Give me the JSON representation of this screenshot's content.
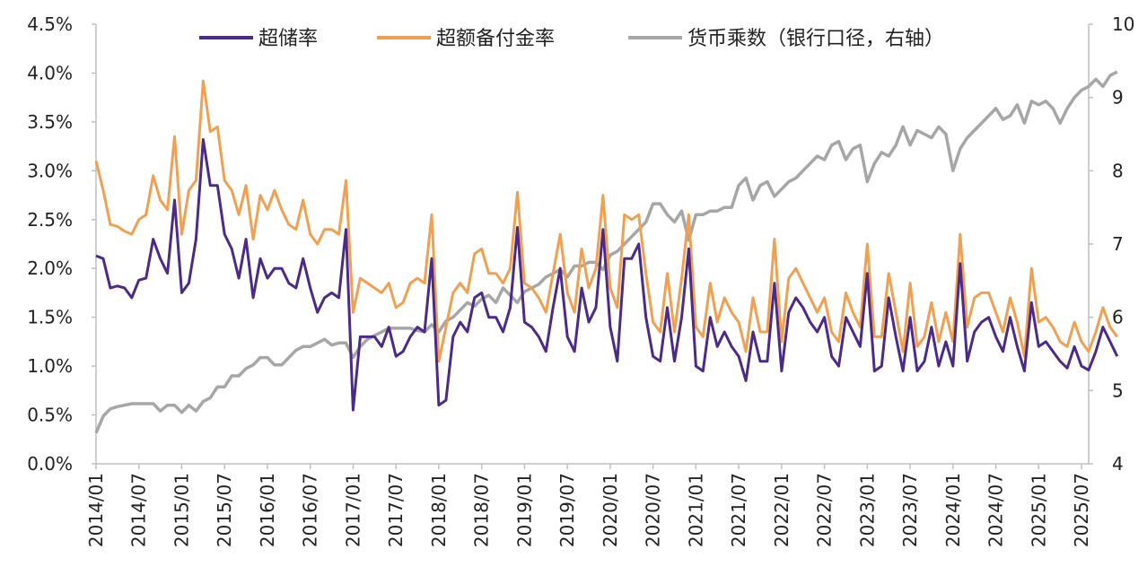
{
  "chart_data": {
    "type": "line",
    "title": "",
    "xlabel": "",
    "ylabel": "",
    "y_left": {
      "min": 0,
      "max": 4.5,
      "ticks": [
        "0.0%",
        "0.5%",
        "1.0%",
        "1.5%",
        "2.0%",
        "2.5%",
        "3.0%",
        "3.5%",
        "4.0%",
        "4.5%"
      ]
    },
    "y_right": {
      "min": 4,
      "max": 10,
      "ticks": [
        "4",
        "5",
        "6",
        "7",
        "8",
        "9",
        "10"
      ]
    },
    "x_ticks": [
      "2014/01",
      "2014/07",
      "2015/01",
      "2015/07",
      "2016/01",
      "2016/07",
      "2017/01",
      "2017/07",
      "2018/01",
      "2018/07",
      "2019/01",
      "2019/07",
      "2020/01",
      "2020/07",
      "2021/01",
      "2021/07",
      "2022/01",
      "2022/07",
      "2023/01",
      "2023/07",
      "2024/01",
      "2024/07",
      "2025/01",
      "2025/07"
    ],
    "x_start": "2014/01",
    "x_end": "2025/08",
    "grid": false,
    "legend_position": "top",
    "series": [
      {
        "name": "超储率",
        "axis": "left",
        "color": "#4b2a8a",
        "values": [
          2.13,
          2.1,
          1.8,
          1.82,
          1.8,
          1.7,
          1.88,
          1.9,
          2.3,
          2.1,
          1.95,
          2.7,
          1.75,
          1.85,
          2.3,
          3.32,
          2.85,
          2.85,
          2.35,
          2.2,
          1.9,
          2.3,
          1.7,
          2.1,
          1.9,
          2.0,
          2.0,
          1.85,
          1.8,
          2.1,
          1.8,
          1.55,
          1.7,
          1.75,
          1.7,
          2.4,
          0.55,
          1.3,
          1.3,
          1.3,
          1.2,
          1.4,
          1.1,
          1.15,
          1.3,
          1.4,
          1.35,
          2.1,
          0.6,
          0.65,
          1.3,
          1.45,
          1.35,
          1.7,
          1.75,
          1.5,
          1.5,
          1.35,
          1.6,
          2.42,
          1.45,
          1.4,
          1.3,
          1.15,
          1.6,
          2.0,
          1.3,
          1.15,
          1.8,
          1.45,
          1.6,
          2.4,
          1.4,
          1.05,
          2.1,
          2.1,
          2.25,
          1.5,
          1.1,
          1.05,
          1.6,
          1.05,
          1.5,
          2.2,
          1.0,
          0.95,
          1.5,
          1.2,
          1.35,
          1.2,
          1.1,
          0.85,
          1.35,
          1.05,
          1.05,
          1.85,
          0.95,
          1.55,
          1.7,
          1.6,
          1.45,
          1.35,
          1.5,
          1.1,
          1.0,
          1.5,
          1.35,
          1.2,
          1.95,
          0.95,
          1.0,
          1.7,
          1.3,
          0.95,
          1.5,
          0.95,
          1.05,
          1.4,
          1.0,
          1.25,
          1.0,
          2.05,
          1.05,
          1.35,
          1.45,
          1.5,
          1.3,
          1.15,
          1.5,
          1.2,
          0.95,
          1.65,
          1.2,
          1.25,
          1.15,
          1.05,
          0.98,
          1.2,
          1.0,
          0.96,
          1.15,
          1.4,
          1.25,
          1.1
        ]
      },
      {
        "name": "超额备付金率",
        "axis": "left",
        "color": "#f0a050",
        "values": [
          3.1,
          2.8,
          2.45,
          2.43,
          2.38,
          2.35,
          2.5,
          2.55,
          2.95,
          2.7,
          2.6,
          3.35,
          2.35,
          2.8,
          2.9,
          3.92,
          3.4,
          3.45,
          2.9,
          2.8,
          2.55,
          2.85,
          2.3,
          2.75,
          2.6,
          2.8,
          2.6,
          2.45,
          2.4,
          2.7,
          2.35,
          2.25,
          2.4,
          2.4,
          2.35,
          2.9,
          1.55,
          1.9,
          1.85,
          1.8,
          1.75,
          1.85,
          1.6,
          1.65,
          1.85,
          1.9,
          1.85,
          2.55,
          1.05,
          1.4,
          1.75,
          1.85,
          1.75,
          2.15,
          2.2,
          1.95,
          1.95,
          1.85,
          2.0,
          2.78,
          1.85,
          1.8,
          1.7,
          1.55,
          1.95,
          2.35,
          1.75,
          1.55,
          2.2,
          1.8,
          2.0,
          2.75,
          1.8,
          1.6,
          2.55,
          2.5,
          2.55,
          1.95,
          1.45,
          1.35,
          1.95,
          1.35,
          1.9,
          2.55,
          1.4,
          1.3,
          1.85,
          1.45,
          1.7,
          1.55,
          1.45,
          1.15,
          1.7,
          1.35,
          1.35,
          2.3,
          1.25,
          1.9,
          2.0,
          1.85,
          1.7,
          1.55,
          1.7,
          1.35,
          1.25,
          1.75,
          1.55,
          1.4,
          2.25,
          1.3,
          1.3,
          1.95,
          1.55,
          1.15,
          1.85,
          1.2,
          1.3,
          1.65,
          1.25,
          1.55,
          1.25,
          2.35,
          1.4,
          1.7,
          1.75,
          1.75,
          1.55,
          1.35,
          1.7,
          1.45,
          1.1,
          2.0,
          1.45,
          1.5,
          1.4,
          1.25,
          1.2,
          1.45,
          1.25,
          1.15,
          1.35,
          1.6,
          1.4,
          1.3
        ]
      },
      {
        "name": "货币乘数（银行口径，右轴）",
        "axis": "right",
        "color": "#a6a6a6",
        "values": [
          4.42,
          4.65,
          4.75,
          4.78,
          4.8,
          4.82,
          4.82,
          4.82,
          4.82,
          4.72,
          4.8,
          4.8,
          4.7,
          4.8,
          4.72,
          4.85,
          4.9,
          5.05,
          5.05,
          5.2,
          5.2,
          5.3,
          5.35,
          5.45,
          5.45,
          5.35,
          5.35,
          5.45,
          5.55,
          5.6,
          5.6,
          5.65,
          5.7,
          5.62,
          5.65,
          5.65,
          5.45,
          5.6,
          5.7,
          5.75,
          5.8,
          5.85,
          5.85,
          5.85,
          5.85,
          5.82,
          5.8,
          5.9,
          5.8,
          5.95,
          6.0,
          6.1,
          6.2,
          6.15,
          6.25,
          6.3,
          6.2,
          6.4,
          6.3,
          6.2,
          6.35,
          6.4,
          6.45,
          6.55,
          6.6,
          6.65,
          6.55,
          6.7,
          6.7,
          6.75,
          6.75,
          6.65,
          6.85,
          6.9,
          7.0,
          7.1,
          7.2,
          7.3,
          7.55,
          7.55,
          7.4,
          7.3,
          7.45,
          7.05,
          7.4,
          7.4,
          7.45,
          7.45,
          7.5,
          7.5,
          7.8,
          7.9,
          7.6,
          7.8,
          7.85,
          7.65,
          7.75,
          7.85,
          7.9,
          8.0,
          8.1,
          8.2,
          8.15,
          8.35,
          8.4,
          8.15,
          8.3,
          8.35,
          7.85,
          8.1,
          8.25,
          8.2,
          8.35,
          8.6,
          8.35,
          8.55,
          8.5,
          8.45,
          8.6,
          8.5,
          8.0,
          8.3,
          8.45,
          8.55,
          8.65,
          8.75,
          8.85,
          8.7,
          8.75,
          8.9,
          8.65,
          8.95,
          8.9,
          8.95,
          8.85,
          8.65,
          8.85,
          9.0,
          9.1,
          9.15,
          9.25,
          9.15,
          9.3,
          9.35
        ]
      }
    ]
  }
}
